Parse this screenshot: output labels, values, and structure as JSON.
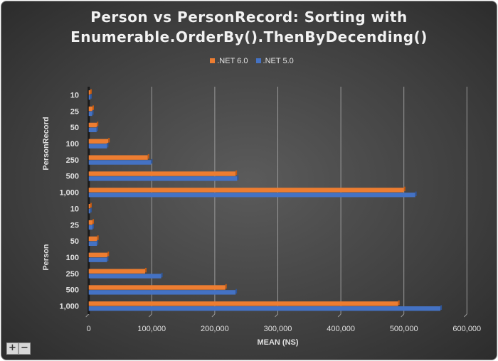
{
  "chart_data": {
    "type": "bar",
    "orientation": "horizontal",
    "title": "Person vs PersonRecord: Sorting with Enumerable.OrderBy().ThenByDecending()",
    "title_lines": [
      "Person vs PersonRecord: Sorting with",
      "Enumerable.OrderBy().ThenByDecending()"
    ],
    "xlabel": "MEAN (NS)",
    "ylabel": "",
    "xlim": [
      0,
      600000
    ],
    "xticks": [
      0,
      100000,
      200000,
      300000,
      400000,
      500000,
      600000
    ],
    "xtick_labels": [
      "0",
      "100,000",
      "200,000",
      "300,000",
      "400,000",
      "500,000",
      "600,000"
    ],
    "grid": "vertical",
    "legend": "top",
    "groups": [
      {
        "name": "PersonRecord",
        "categories": [
          "10",
          "25",
          "50",
          "100",
          "250",
          "500",
          "1,000"
        ]
      },
      {
        "name": "Person",
        "categories": [
          "10",
          "25",
          "50",
          "100",
          "250",
          "500",
          "1,000"
        ]
      }
    ],
    "series": [
      {
        "name": ".NET 6.0",
        "color": "#ed7d31",
        "values": [
          [
            2500,
            6000,
            13000,
            31000,
            93700,
            233000,
            500000
          ],
          [
            2500,
            6000,
            13500,
            30000,
            89500,
            216700,
            491000
          ]
        ]
      },
      {
        "name": ".NET 5.0",
        "color": "#4472c4",
        "values": [
          [
            2700,
            5500,
            12500,
            29000,
            99000,
            235500,
            518000
          ],
          [
            2500,
            6000,
            13000,
            29000,
            115000,
            233000,
            558000
          ]
        ]
      }
    ]
  },
  "controls": {
    "zoom_in": "+",
    "zoom_out": "−"
  }
}
